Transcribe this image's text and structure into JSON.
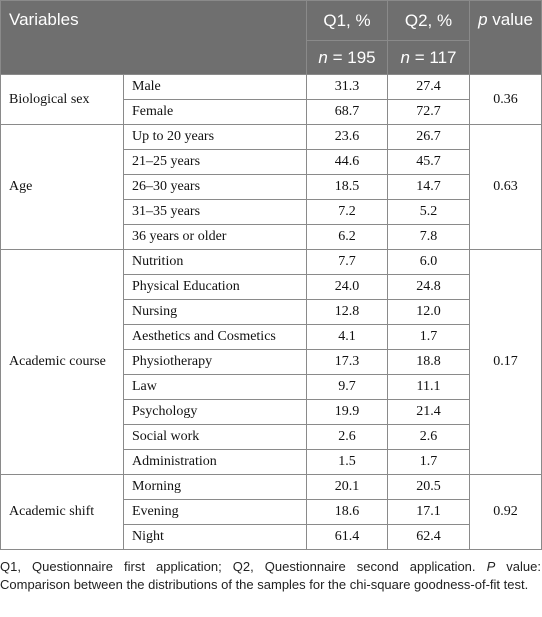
{
  "header": {
    "variables": "Variables",
    "q1": "Q1, %",
    "q2": "Q2, %",
    "p_letter": "p",
    "p_word": "value",
    "n1_letter": "n",
    "n1_value": "= 195",
    "n2_letter": "n",
    "n2_value": "= 117"
  },
  "groups": [
    {
      "label": "Biological sex",
      "p": "0.36",
      "rows": [
        {
          "cat": "Male",
          "q1": "31.3",
          "q2": "27.4"
        },
        {
          "cat": "Female",
          "q1": "68.7",
          "q2": "72.7"
        }
      ]
    },
    {
      "label": "Age",
      "p": "0.63",
      "rows": [
        {
          "cat": "Up to 20 years",
          "q1": "23.6",
          "q2": "26.7"
        },
        {
          "cat": "21–25 years",
          "q1": "44.6",
          "q2": "45.7"
        },
        {
          "cat": "26–30 years",
          "q1": "18.5",
          "q2": "14.7"
        },
        {
          "cat": "31–35 years",
          "q1": "7.2",
          "q2": "5.2"
        },
        {
          "cat": "36 years or older",
          "q1": "6.2",
          "q2": "7.8"
        }
      ]
    },
    {
      "label": "Academic course",
      "p": "0.17",
      "rows": [
        {
          "cat": "Nutrition",
          "q1": "7.7",
          "q2": "6.0"
        },
        {
          "cat": "Physical Education",
          "q1": "24.0",
          "q2": "24.8"
        },
        {
          "cat": "Nursing",
          "q1": "12.8",
          "q2": "12.0"
        },
        {
          "cat": "Aesthetics and Cosmetics",
          "q1": "4.1",
          "q2": "1.7"
        },
        {
          "cat": "Physiotherapy",
          "q1": "17.3",
          "q2": "18.8"
        },
        {
          "cat": "Law",
          "q1": "9.7",
          "q2": "11.1"
        },
        {
          "cat": "Psychology",
          "q1": "19.9",
          "q2": "21.4"
        },
        {
          "cat": "Social work",
          "q1": "2.6",
          "q2": "2.6"
        },
        {
          "cat": "Administration",
          "q1": "1.5",
          "q2": "1.7"
        }
      ]
    },
    {
      "label": "Academic shift",
      "p": "0.92",
      "rows": [
        {
          "cat": "Morning",
          "q1": "20.1",
          "q2": "20.5"
        },
        {
          "cat": "Evening",
          "q1": "18.6",
          "q2": "17.1"
        },
        {
          "cat": "Night",
          "q1": "61.4",
          "q2": "62.4"
        }
      ]
    }
  ],
  "footnote": {
    "part1": "Q1, Questionnaire first application; Q2, Questionnaire second application. ",
    "p_letter": "P",
    "part2": " value: Comparison between the distributions of the samples for the chi-square goodness-of-fit test."
  }
}
